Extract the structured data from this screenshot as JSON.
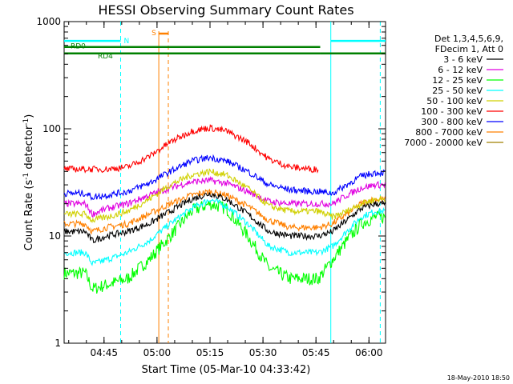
{
  "chart_data": {
    "type": "line",
    "title": "HESSI Observing Summary Count Rates",
    "xlabel": "Start Time (05-Mar-10 04:33:42)",
    "ylabel_main": "Count Rate (s",
    "ylabel_sup1": "-1",
    "ylabel_mid": " detector",
    "ylabel_sup2": "-1",
    "ylabel_end": ")",
    "yscale": "log",
    "ylim": [
      1,
      1000
    ],
    "xlim_minutes": [
      0,
      91
    ],
    "x_ticks": [
      {
        "label": "04:45",
        "minute": 11.3
      },
      {
        "label": "05:00",
        "minute": 26.3
      },
      {
        "label": "05:15",
        "minute": 41.3
      },
      {
        "label": "05:30",
        "minute": 56.3
      },
      {
        "label": "05:45",
        "minute": 71.3
      },
      {
        "label": "06:00",
        "minute": 86.3
      }
    ],
    "y_ticks": [
      {
        "label": "1",
        "value": 1
      },
      {
        "label": "10",
        "value": 10
      },
      {
        "label": "100",
        "value": 100
      },
      {
        "label": "1000",
        "value": 1000
      }
    ],
    "legend_header": [
      "Det 1,3,4,5,6,9,",
      "FDecim 1, Att 0"
    ],
    "legend_position": "top-right",
    "series": [
      {
        "name": "3 - 6 keV",
        "color": "#000000",
        "values": [
          [
            0,
            11
          ],
          [
            6,
            11
          ],
          [
            8,
            9
          ],
          [
            12,
            10
          ],
          [
            18,
            11
          ],
          [
            24,
            13
          ],
          [
            30,
            17
          ],
          [
            36,
            22
          ],
          [
            41.3,
            25
          ],
          [
            46,
            22
          ],
          [
            52,
            16
          ],
          [
            58,
            11
          ],
          [
            64,
            10
          ],
          [
            70,
            10
          ],
          [
            72,
            10
          ],
          [
            76,
            11
          ],
          [
            80,
            14
          ],
          [
            84,
            18
          ],
          [
            88,
            20
          ],
          [
            91,
            20
          ]
        ]
      },
      {
        "name": "6 - 12 keV",
        "color": "#e000e0",
        "values": [
          [
            0,
            20
          ],
          [
            6,
            20
          ],
          [
            8,
            16
          ],
          [
            12,
            18
          ],
          [
            18,
            20
          ],
          [
            24,
            24
          ],
          [
            30,
            28
          ],
          [
            36,
            32
          ],
          [
            41.3,
            33
          ],
          [
            46,
            31
          ],
          [
            52,
            26
          ],
          [
            58,
            21
          ],
          [
            64,
            20
          ],
          [
            70,
            20
          ],
          [
            72,
            20
          ],
          [
            76,
            20
          ],
          [
            80,
            24
          ],
          [
            84,
            28
          ],
          [
            88,
            30
          ],
          [
            91,
            30
          ]
        ]
      },
      {
        "name": "12 - 25 keV",
        "color": "#00ff00",
        "values": [
          [
            0,
            4.5
          ],
          [
            6,
            4.5
          ],
          [
            8,
            3.2
          ],
          [
            12,
            3.5
          ],
          [
            18,
            4
          ],
          [
            24,
            6
          ],
          [
            30,
            10
          ],
          [
            36,
            17
          ],
          [
            41.3,
            20
          ],
          [
            46,
            18
          ],
          [
            52,
            10
          ],
          [
            58,
            5
          ],
          [
            64,
            4
          ],
          [
            70,
            4
          ],
          [
            72,
            4
          ],
          [
            76,
            6
          ],
          [
            80,
            9
          ],
          [
            84,
            13
          ],
          [
            88,
            15
          ],
          [
            91,
            15
          ]
        ]
      },
      {
        "name": "25 - 50 keV",
        "color": "#00ffff",
        "values": [
          [
            0,
            7
          ],
          [
            6,
            7
          ],
          [
            8,
            5.5
          ],
          [
            12,
            6
          ],
          [
            18,
            7
          ],
          [
            24,
            9
          ],
          [
            30,
            13
          ],
          [
            36,
            18
          ],
          [
            41.3,
            22
          ],
          [
            46,
            19
          ],
          [
            52,
            13
          ],
          [
            58,
            8
          ],
          [
            64,
            7
          ],
          [
            70,
            7
          ],
          [
            72,
            7
          ],
          [
            76,
            8
          ],
          [
            80,
            11
          ],
          [
            84,
            15
          ],
          [
            88,
            17
          ],
          [
            91,
            17
          ]
        ]
      },
      {
        "name": "50 - 100 keV",
        "color": "#d0d000",
        "values": [
          [
            0,
            16
          ],
          [
            6,
            16
          ],
          [
            8,
            14
          ],
          [
            12,
            15
          ],
          [
            18,
            17
          ],
          [
            24,
            22
          ],
          [
            30,
            30
          ],
          [
            36,
            37
          ],
          [
            41.3,
            40
          ],
          [
            46,
            37
          ],
          [
            52,
            28
          ],
          [
            58,
            19
          ],
          [
            64,
            17
          ],
          [
            70,
            17
          ],
          [
            72,
            17
          ],
          [
            76,
            15
          ],
          [
            80,
            17
          ],
          [
            84,
            20
          ],
          [
            88,
            22
          ],
          [
            91,
            22
          ]
        ]
      },
      {
        "name": "100 - 300 keV",
        "color": "#ff0000",
        "values": [
          [
            0,
            42
          ],
          [
            6,
            42
          ],
          [
            8,
            42
          ],
          [
            12,
            42
          ],
          [
            18,
            44
          ],
          [
            24,
            55
          ],
          [
            30,
            75
          ],
          [
            36,
            95
          ],
          [
            41.3,
            102
          ],
          [
            46,
            95
          ],
          [
            52,
            75
          ],
          [
            58,
            52
          ],
          [
            64,
            44
          ],
          [
            70,
            42
          ],
          [
            72,
            42
          ]
        ]
      },
      {
        "name": "300 - 800 keV",
        "color": "#0000ff",
        "values": [
          [
            0,
            25
          ],
          [
            6,
            25
          ],
          [
            8,
            23
          ],
          [
            12,
            24
          ],
          [
            18,
            26
          ],
          [
            24,
            31
          ],
          [
            30,
            40
          ],
          [
            36,
            50
          ],
          [
            41.3,
            54
          ],
          [
            46,
            50
          ],
          [
            52,
            40
          ],
          [
            58,
            30
          ],
          [
            64,
            27
          ],
          [
            70,
            26
          ],
          [
            72,
            26
          ],
          [
            76,
            25
          ],
          [
            80,
            30
          ],
          [
            84,
            36
          ],
          [
            88,
            39
          ],
          [
            91,
            39
          ]
        ]
      },
      {
        "name": "800 - 7000 keV",
        "color": "#ff8000",
        "values": [
          [
            0,
            13
          ],
          [
            6,
            13
          ],
          [
            8,
            11
          ],
          [
            12,
            12
          ],
          [
            18,
            13
          ],
          [
            24,
            16
          ],
          [
            30,
            20
          ],
          [
            36,
            24
          ],
          [
            41.3,
            26
          ],
          [
            46,
            24
          ],
          [
            52,
            19
          ],
          [
            58,
            14
          ],
          [
            64,
            12
          ],
          [
            70,
            12
          ],
          [
            72,
            12
          ],
          [
            76,
            13
          ],
          [
            80,
            16
          ],
          [
            84,
            20
          ],
          [
            88,
            22
          ],
          [
            91,
            22
          ]
        ]
      },
      {
        "name": "7000 - 20000 keV",
        "color": "#a08000",
        "values": []
      }
    ],
    "annotations": {
      "n_label": "N",
      "s_label": "S",
      "rd0_label": "RD0",
      "rd4_label": "RD4",
      "night_segments": [
        [
          0,
          16
        ],
        [
          75.5,
          91
        ]
      ],
      "n_level": 660,
      "rd0_segment": [
        0,
        72.5
      ],
      "rd0_level": 580,
      "rd4_segments": [
        [
          0,
          72.5
        ],
        [
          72.5,
          91
        ]
      ],
      "rd4_level": 505,
      "saa_solid": 26.8,
      "saa_dashed": 29.5,
      "night_dashed": [
        16,
        89.5
      ],
      "colors": {
        "night": "#00ffff",
        "saa": "#ff8000",
        "rd": "#008000"
      }
    },
    "grid": false
  },
  "timestamp": "18-May-2010 18:50"
}
